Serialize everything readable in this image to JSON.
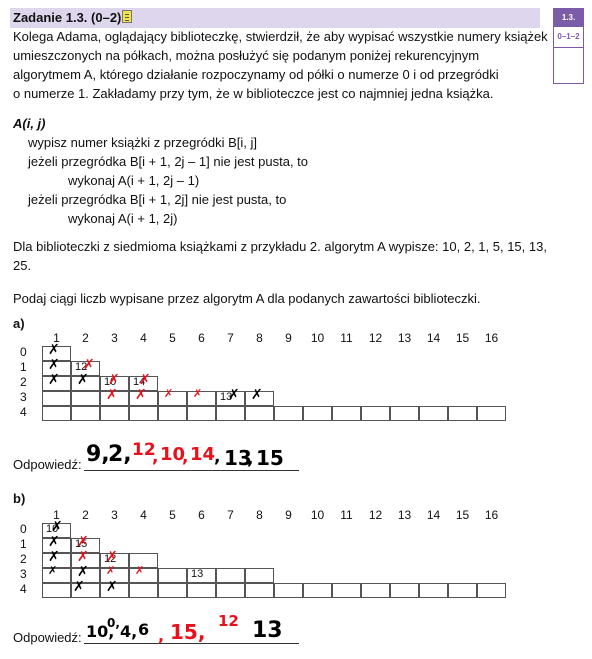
{
  "task": {
    "title": "Zadanie 1.3. (0–2)",
    "icon": "notepad-icon",
    "score_label": "1.3.",
    "score_range": "0–1–2"
  },
  "intro": [
    "Kolega Adama, oglądający biblioteczkę, stwierdził, że aby wypisać wszystkie numery książek",
    "umieszczonych na półkach, można posłużyć się podanym poniżej rekurencyjnym",
    "algorytmem A, którego działanie rozpoczynamy od półki o numerze 0 i od przegródki",
    "o numerze 1. Zakładamy przy tym, że w biblioteczce jest co najmniej jedna książka."
  ],
  "algorithm": [
    "A(i, j)",
    "wypisz numer książki z przegródki B[i, j]",
    "jeżeli przegródka B[i + 1, 2j – 1] nie jest pusta, to",
    "wykonaj A(i + 1, 2j – 1)",
    "jeżeli przegródka B[i + 1, 2j] nie jest pusta, to",
    "wykonaj A(i + 1, 2j)"
  ],
  "example": [
    "Dla biblioteczki z siedmioma książkami z przykładu 2. algorytm A wypisze: 10, 2, 1, 5, 15, 13,",
    "25."
  ],
  "instruction": "Podaj ciągi liczb wypisane przez algorytm A dla podanych zawartości biblioteczki.",
  "columns": [
    "1",
    "2",
    "3",
    "4",
    "5",
    "6",
    "7",
    "8",
    "9",
    "10",
    "11",
    "12",
    "13",
    "14",
    "15",
    "16"
  ],
  "rows": [
    "0",
    "1",
    "2",
    "3",
    "4"
  ],
  "part_a": {
    "label": "a)",
    "cell_numbers": [
      {
        "row": 1,
        "col": 2,
        "text": "12"
      },
      {
        "row": 2,
        "col": 3,
        "text": "10"
      },
      {
        "row": 2,
        "col": 4,
        "text": "14"
      },
      {
        "row": 3,
        "col": 7,
        "text": "13"
      }
    ],
    "answer_label": "Odpowiedź:",
    "answer_handwritten": [
      "9,",
      "2,",
      "12",
      ",",
      "10",
      ",",
      "14",
      ",",
      "13",
      ",",
      "15"
    ]
  },
  "part_b": {
    "label": "b)",
    "cell_numbers": [
      {
        "row": 0,
        "col": 1,
        "text": "10"
      },
      {
        "row": 1,
        "col": 2,
        "text": "15"
      },
      {
        "row": 2,
        "col": 3,
        "text": "12"
      },
      {
        "row": 3,
        "col": 6,
        "text": "13"
      }
    ],
    "answer_label": "Odpowiedź:",
    "answer_handwritten": [
      "10,",
      "0,",
      "4,",
      "6",
      ",",
      "15,",
      "12",
      "13"
    ]
  },
  "colors": {
    "header": "#ded6ec",
    "accent": "#7a5ca8",
    "ink_black": "#000000",
    "ink_red": "#e8101a"
  }
}
